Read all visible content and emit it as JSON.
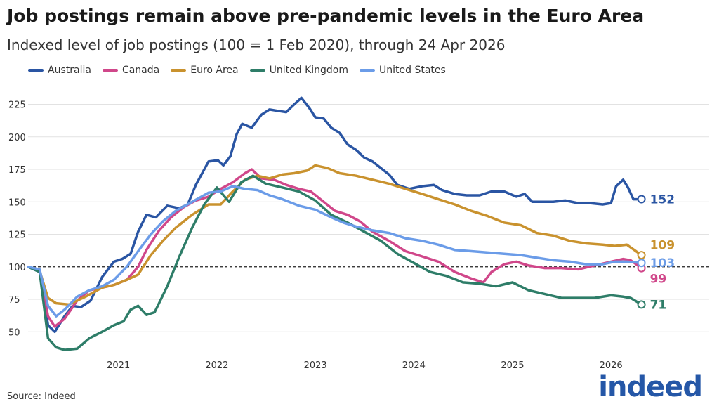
{
  "title": "Job postings remain above pre-pandemic levels in the Euro Area",
  "subtitle": "Indexed level of job postings (100 = 1 Feb 2020), through 24 Apr 2026",
  "source": "Source: Indeed",
  "logo_text": "indeed",
  "colors": {
    "brand": "#2557a7",
    "grid": "#e2e2e2",
    "reference_line": "#222222"
  },
  "chart_data": {
    "type": "line",
    "title": "Job postings remain above pre-pandemic levels in the Euro Area",
    "subtitle": "Indexed level of job postings (100 = 1 Feb 2020), through 24 Apr 2026",
    "xlabel": "",
    "ylabel": "",
    "x_ticks": [
      "2021",
      "2022",
      "2023",
      "2024",
      "2025",
      "2026"
    ],
    "y_ticks": [
      50,
      75,
      100,
      125,
      150,
      175,
      200,
      225
    ],
    "xlim": [
      "2020-02-01",
      "2026-12-31"
    ],
    "ylim": [
      35,
      235
    ],
    "reference_line": 100,
    "grid": "horizontal",
    "legend_position": "top-left",
    "series": [
      {
        "name": "Australia",
        "color": "#2a55a3",
        "end_label": "152",
        "points": [
          [
            "2020-02-01",
            100
          ],
          [
            "2020-03-15",
            96
          ],
          [
            "2020-04-15",
            55
          ],
          [
            "2020-05-10",
            50
          ],
          [
            "2020-06-15",
            62
          ],
          [
            "2020-07-15",
            70
          ],
          [
            "2020-08-15",
            69
          ],
          [
            "2020-09-20",
            74
          ],
          [
            "2020-11-01",
            92
          ],
          [
            "2020-12-15",
            104
          ],
          [
            "2021-01-15",
            106
          ],
          [
            "2021-02-15",
            110
          ],
          [
            "2021-03-15",
            127
          ],
          [
            "2021-04-15",
            140
          ],
          [
            "2021-05-20",
            138
          ],
          [
            "2021-07-01",
            147
          ],
          [
            "2021-08-15",
            145
          ],
          [
            "2021-09-15",
            148
          ],
          [
            "2021-10-15",
            163
          ],
          [
            "2021-12-01",
            181
          ],
          [
            "2022-01-05",
            182
          ],
          [
            "2022-01-25",
            178
          ],
          [
            "2022-02-20",
            185
          ],
          [
            "2022-03-15",
            202
          ],
          [
            "2022-04-05",
            210
          ],
          [
            "2022-05-10",
            207
          ],
          [
            "2022-06-15",
            217
          ],
          [
            "2022-07-15",
            221
          ],
          [
            "2022-08-15",
            220
          ],
          [
            "2022-09-15",
            219
          ],
          [
            "2022-10-10",
            224
          ],
          [
            "2022-11-10",
            230
          ],
          [
            "2022-12-10",
            222
          ],
          [
            "2023-01-01",
            215
          ],
          [
            "2023-02-01",
            214
          ],
          [
            "2023-03-01",
            207
          ],
          [
            "2023-04-01",
            203
          ],
          [
            "2023-05-01",
            194
          ],
          [
            "2023-06-01",
            190
          ],
          [
            "2023-07-01",
            184
          ],
          [
            "2023-08-01",
            181
          ],
          [
            "2023-09-01",
            176
          ],
          [
            "2023-10-01",
            171
          ],
          [
            "2023-11-01",
            163
          ],
          [
            "2023-12-15",
            160
          ],
          [
            "2024-02-01",
            162
          ],
          [
            "2024-03-15",
            163
          ],
          [
            "2024-04-15",
            159
          ],
          [
            "2024-06-01",
            156
          ],
          [
            "2024-07-15",
            155
          ],
          [
            "2024-09-01",
            155
          ],
          [
            "2024-10-15",
            158
          ],
          [
            "2024-12-01",
            158
          ],
          [
            "2025-01-15",
            154
          ],
          [
            "2025-02-15",
            156
          ],
          [
            "2025-03-15",
            150
          ],
          [
            "2025-04-15",
            150
          ],
          [
            "2025-06-01",
            150
          ],
          [
            "2025-07-15",
            151
          ],
          [
            "2025-09-01",
            149
          ],
          [
            "2025-10-15",
            149
          ],
          [
            "2025-12-01",
            148
          ],
          [
            "2026-01-01",
            149
          ],
          [
            "2026-01-20",
            162
          ],
          [
            "2026-02-15",
            167
          ],
          [
            "2026-03-05",
            161
          ],
          [
            "2026-03-25",
            152
          ],
          [
            "2026-04-24",
            152
          ]
        ]
      },
      {
        "name": "Canada",
        "color": "#d0478a",
        "end_label": "99",
        "points": [
          [
            "2020-02-01",
            100
          ],
          [
            "2020-03-15",
            97
          ],
          [
            "2020-04-15",
            62
          ],
          [
            "2020-05-10",
            54
          ],
          [
            "2020-06-15",
            60
          ],
          [
            "2020-08-01",
            74
          ],
          [
            "2020-09-15",
            82
          ],
          [
            "2020-11-01",
            84
          ],
          [
            "2020-12-15",
            86
          ],
          [
            "2021-02-01",
            90
          ],
          [
            "2021-03-15",
            100
          ],
          [
            "2021-04-15",
            113
          ],
          [
            "2021-06-01",
            128
          ],
          [
            "2021-07-15",
            138
          ],
          [
            "2021-09-01",
            146
          ],
          [
            "2021-10-15",
            151
          ],
          [
            "2021-12-01",
            154
          ],
          [
            "2022-01-15",
            160
          ],
          [
            "2022-03-01",
            165
          ],
          [
            "2022-04-15",
            172
          ],
          [
            "2022-05-10",
            175
          ],
          [
            "2022-06-15",
            168
          ],
          [
            "2022-08-01",
            167
          ],
          [
            "2022-09-15",
            163
          ],
          [
            "2022-11-01",
            160
          ],
          [
            "2022-12-15",
            158
          ],
          [
            "2023-02-01",
            150
          ],
          [
            "2023-03-15",
            143
          ],
          [
            "2023-05-01",
            140
          ],
          [
            "2023-06-15",
            135
          ],
          [
            "2023-08-01",
            127
          ],
          [
            "2023-10-01",
            120
          ],
          [
            "2023-12-01",
            112
          ],
          [
            "2024-02-01",
            108
          ],
          [
            "2024-04-01",
            104
          ],
          [
            "2024-06-01",
            96
          ],
          [
            "2024-08-01",
            91
          ],
          [
            "2024-09-15",
            88
          ],
          [
            "2024-10-15",
            96
          ],
          [
            "2024-12-01",
            102
          ],
          [
            "2025-01-15",
            104
          ],
          [
            "2025-03-01",
            101
          ],
          [
            "2025-05-01",
            99
          ],
          [
            "2025-07-01",
            99
          ],
          [
            "2025-09-01",
            98
          ],
          [
            "2025-11-01",
            101
          ],
          [
            "2026-01-01",
            104
          ],
          [
            "2026-02-15",
            106
          ],
          [
            "2026-03-15",
            105
          ],
          [
            "2026-04-24",
            99
          ]
        ]
      },
      {
        "name": "Euro Area",
        "color": "#c9922e",
        "end_label": "109",
        "points": [
          [
            "2020-02-01",
            100
          ],
          [
            "2020-03-15",
            97
          ],
          [
            "2020-04-15",
            76
          ],
          [
            "2020-05-15",
            72
          ],
          [
            "2020-07-01",
            71
          ],
          [
            "2020-09-01",
            77
          ],
          [
            "2020-11-01",
            84
          ],
          [
            "2020-12-15",
            86
          ],
          [
            "2021-02-01",
            90
          ],
          [
            "2021-03-15",
            94
          ],
          [
            "2021-05-01",
            109
          ],
          [
            "2021-06-15",
            120
          ],
          [
            "2021-08-01",
            130
          ],
          [
            "2021-10-01",
            140
          ],
          [
            "2021-12-01",
            148
          ],
          [
            "2022-01-15",
            148
          ],
          [
            "2022-03-01",
            158
          ],
          [
            "2022-04-15",
            167
          ],
          [
            "2022-06-01",
            170
          ],
          [
            "2022-07-15",
            168
          ],
          [
            "2022-09-01",
            171
          ],
          [
            "2022-10-15",
            172
          ],
          [
            "2022-12-01",
            174
          ],
          [
            "2023-01-01",
            178
          ],
          [
            "2023-02-15",
            176
          ],
          [
            "2023-04-01",
            172
          ],
          [
            "2023-06-01",
            170
          ],
          [
            "2023-08-01",
            167
          ],
          [
            "2023-10-01",
            164
          ],
          [
            "2023-12-01",
            160
          ],
          [
            "2024-02-01",
            156
          ],
          [
            "2024-04-01",
            152
          ],
          [
            "2024-06-01",
            148
          ],
          [
            "2024-08-01",
            143
          ],
          [
            "2024-10-01",
            139
          ],
          [
            "2024-12-01",
            134
          ],
          [
            "2025-02-01",
            132
          ],
          [
            "2025-04-01",
            126
          ],
          [
            "2025-06-01",
            124
          ],
          [
            "2025-08-01",
            120
          ],
          [
            "2025-10-01",
            118
          ],
          [
            "2025-12-01",
            117
          ],
          [
            "2026-01-15",
            116
          ],
          [
            "2026-03-01",
            117
          ],
          [
            "2026-04-24",
            109
          ]
        ]
      },
      {
        "name": "United Kingdom",
        "color": "#2e7d68",
        "end_label": "71",
        "points": [
          [
            "2020-02-01",
            100
          ],
          [
            "2020-03-15",
            96
          ],
          [
            "2020-04-15",
            45
          ],
          [
            "2020-05-15",
            38
          ],
          [
            "2020-06-15",
            36
          ],
          [
            "2020-08-01",
            37
          ],
          [
            "2020-09-15",
            45
          ],
          [
            "2020-11-01",
            50
          ],
          [
            "2020-12-15",
            55
          ],
          [
            "2021-01-20",
            58
          ],
          [
            "2021-02-15",
            67
          ],
          [
            "2021-03-15",
            70
          ],
          [
            "2021-04-15",
            63
          ],
          [
            "2021-05-15",
            65
          ],
          [
            "2021-07-01",
            85
          ],
          [
            "2021-08-15",
            108
          ],
          [
            "2021-10-01",
            130
          ],
          [
            "2021-11-15",
            148
          ],
          [
            "2022-01-01",
            161
          ],
          [
            "2022-02-15",
            150
          ],
          [
            "2022-04-01",
            165
          ],
          [
            "2022-05-15",
            170
          ],
          [
            "2022-07-01",
            164
          ],
          [
            "2022-09-01",
            161
          ],
          [
            "2022-11-01",
            158
          ],
          [
            "2023-01-01",
            151
          ],
          [
            "2023-03-01",
            140
          ],
          [
            "2023-05-01",
            134
          ],
          [
            "2023-07-01",
            127
          ],
          [
            "2023-09-01",
            120
          ],
          [
            "2023-11-01",
            110
          ],
          [
            "2024-01-01",
            103
          ],
          [
            "2024-03-01",
            96
          ],
          [
            "2024-05-01",
            93
          ],
          [
            "2024-07-01",
            88
          ],
          [
            "2024-09-01",
            87
          ],
          [
            "2024-11-01",
            85
          ],
          [
            "2025-01-01",
            88
          ],
          [
            "2025-03-01",
            82
          ],
          [
            "2025-05-01",
            79
          ],
          [
            "2025-07-01",
            76
          ],
          [
            "2025-09-01",
            76
          ],
          [
            "2025-11-01",
            76
          ],
          [
            "2026-01-01",
            78
          ],
          [
            "2026-02-15",
            77
          ],
          [
            "2026-03-15",
            76
          ],
          [
            "2026-04-24",
            71
          ]
        ]
      },
      {
        "name": "United States",
        "color": "#6b9ce8",
        "end_label": "103",
        "points": [
          [
            "2020-02-01",
            100
          ],
          [
            "2020-03-15",
            98
          ],
          [
            "2020-04-15",
            70
          ],
          [
            "2020-05-15",
            62
          ],
          [
            "2020-06-15",
            67
          ],
          [
            "2020-08-01",
            77
          ],
          [
            "2020-09-15",
            82
          ],
          [
            "2020-11-01",
            85
          ],
          [
            "2020-12-15",
            90
          ],
          [
            "2021-02-01",
            100
          ],
          [
            "2021-03-15",
            112
          ],
          [
            "2021-05-01",
            125
          ],
          [
            "2021-06-15",
            135
          ],
          [
            "2021-08-01",
            143
          ],
          [
            "2021-10-01",
            150
          ],
          [
            "2021-12-01",
            157
          ],
          [
            "2022-01-15",
            158
          ],
          [
            "2022-03-01",
            162
          ],
          [
            "2022-04-15",
            160
          ],
          [
            "2022-06-01",
            159
          ],
          [
            "2022-07-15",
            155
          ],
          [
            "2022-09-01",
            152
          ],
          [
            "2022-11-01",
            147
          ],
          [
            "2023-01-01",
            144
          ],
          [
            "2023-03-01",
            138
          ],
          [
            "2023-04-15",
            134
          ],
          [
            "2023-06-01",
            131
          ],
          [
            "2023-08-01",
            128
          ],
          [
            "2023-10-01",
            126
          ],
          [
            "2023-12-01",
            122
          ],
          [
            "2024-02-01",
            120
          ],
          [
            "2024-04-01",
            117
          ],
          [
            "2024-06-01",
            113
          ],
          [
            "2024-08-01",
            112
          ],
          [
            "2024-10-01",
            111
          ],
          [
            "2024-12-01",
            110
          ],
          [
            "2025-02-01",
            109
          ],
          [
            "2025-04-01",
            107
          ],
          [
            "2025-06-01",
            105
          ],
          [
            "2025-08-01",
            104
          ],
          [
            "2025-10-01",
            102
          ],
          [
            "2025-12-01",
            102
          ],
          [
            "2026-01-15",
            104
          ],
          [
            "2026-03-01",
            104
          ],
          [
            "2026-04-24",
            103
          ]
        ]
      }
    ]
  }
}
